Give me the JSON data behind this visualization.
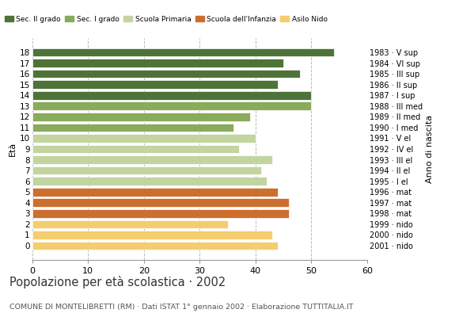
{
  "ages": [
    18,
    17,
    16,
    15,
    14,
    13,
    12,
    11,
    10,
    9,
    8,
    7,
    6,
    5,
    4,
    3,
    2,
    1,
    0
  ],
  "values": [
    54,
    45,
    48,
    44,
    50,
    50,
    39,
    36,
    40,
    37,
    43,
    41,
    42,
    44,
    46,
    46,
    35,
    43,
    44
  ],
  "anno_nascita": [
    "1983 · V sup",
    "1984 · VI sup",
    "1985 · III sup",
    "1986 · II sup",
    "1987 · I sup",
    "1988 · III med",
    "1989 · II med",
    "1990 · I med",
    "1991 · V el",
    "1992 · IV el",
    "1993 · III el",
    "1994 · II el",
    "1995 · I el",
    "1996 · mat",
    "1997 · mat",
    "1998 · mat",
    "1999 · nido",
    "2000 · nido",
    "2001 · nido"
  ],
  "color_map": {
    "18": "#4e7339",
    "17": "#4e7339",
    "16": "#4e7339",
    "15": "#4e7339",
    "14": "#4e7339",
    "13": "#8aaa5c",
    "12": "#8aaa5c",
    "11": "#8aaa5c",
    "10": "#c2d4a0",
    "9": "#c2d4a0",
    "8": "#c2d4a0",
    "7": "#c2d4a0",
    "6": "#c2d4a0",
    "5": "#cc6e2e",
    "4": "#cc6e2e",
    "3": "#cc6e2e",
    "2": "#f5cd6e",
    "1": "#f5cd6e",
    "0": "#f5cd6e"
  },
  "legend_labels": [
    "Sec. II grado",
    "Sec. I grado",
    "Scuola Primaria",
    "Scuola dell'Infanzia",
    "Asilo Nido"
  ],
  "legend_colors": [
    "#4e7339",
    "#8aaa5c",
    "#c2d4a0",
    "#cc6e2e",
    "#f5cd6e"
  ],
  "ylabel_left": "Età",
  "ylabel_right": "Anno di nascita",
  "title": "Popolazione per età scolastica · 2002",
  "subtitle": "COMUNE DI MONTELIBRETTI (RM) · Dati ISTAT 1° gennaio 2002 · Elaborazione TUTTITALIA.IT",
  "xlim": [
    0,
    60
  ],
  "xticks": [
    0,
    10,
    20,
    30,
    40,
    50,
    60
  ],
  "grid_color": "#bbbbbb",
  "edge_color": "white"
}
